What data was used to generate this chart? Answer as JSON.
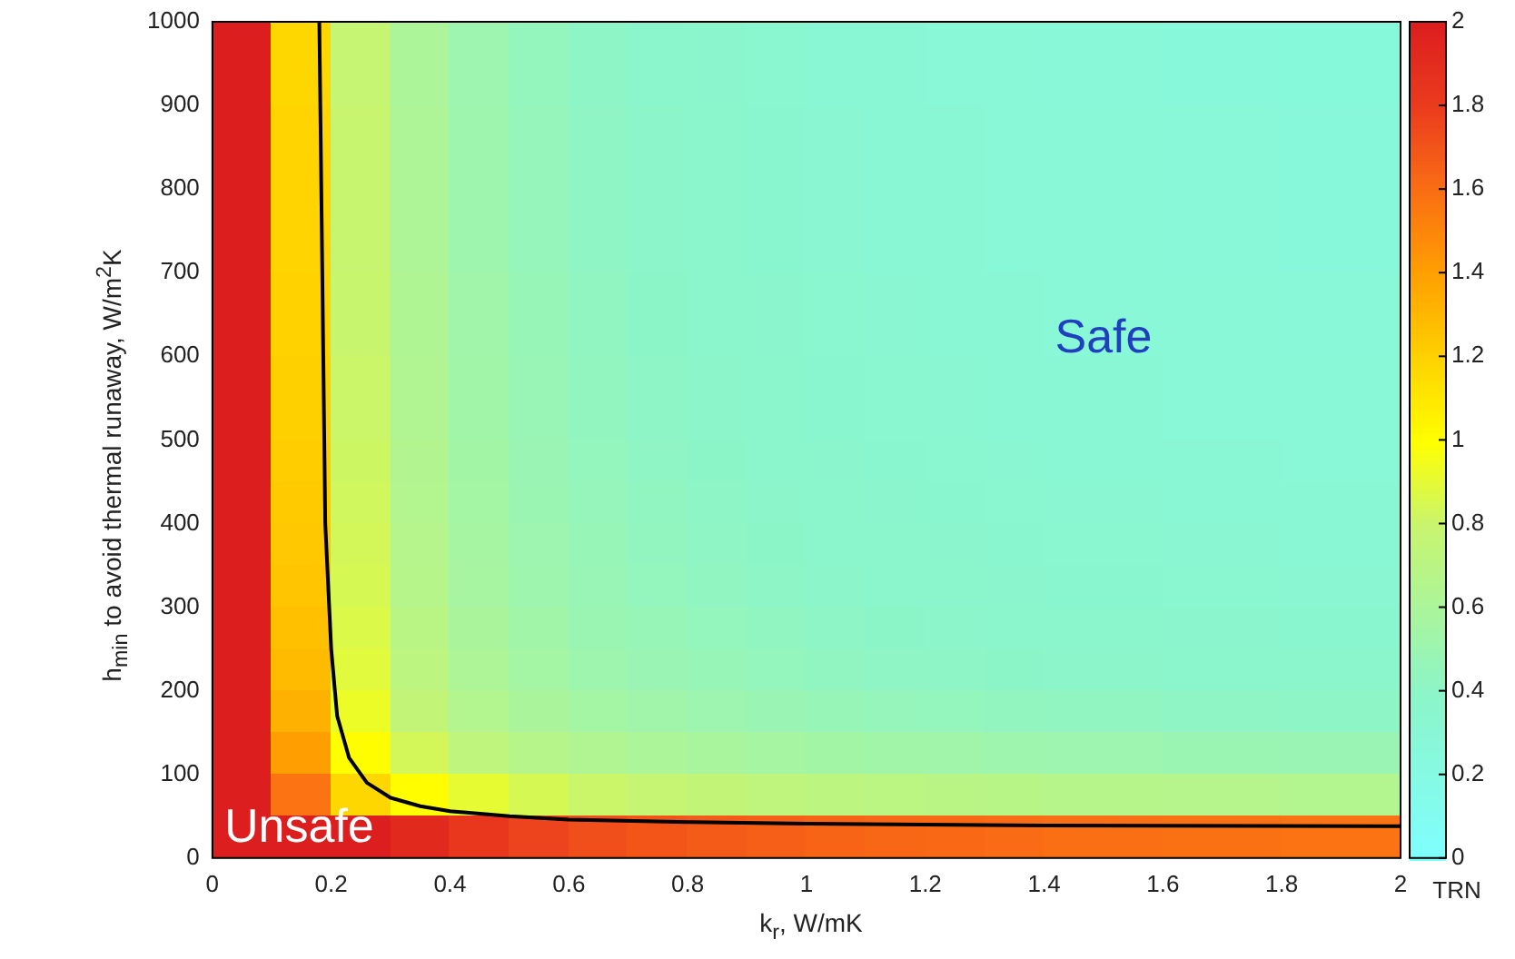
{
  "chart_data": {
    "type": "heatmap",
    "xlabel": "k$_{r}$, W/mK",
    "ylabel": "h$_{min}$ to avoid thermal runaway, W/m$^{2}$K",
    "clabel": "TRN",
    "xlim": [
      0,
      2
    ],
    "xticks": [
      0,
      0.2,
      0.4,
      0.6,
      0.8,
      1,
      1.2,
      1.4,
      1.6,
      1.8,
      2
    ],
    "ylim": [
      0,
      1000
    ],
    "yticks": [
      0,
      100,
      200,
      300,
      400,
      500,
      600,
      700,
      800,
      900,
      1000
    ],
    "clim": [
      0,
      2
    ],
    "cticks": [
      0,
      0.2,
      0.4,
      0.6,
      0.8,
      1,
      1.2,
      1.4,
      1.6,
      1.8,
      2
    ],
    "cells": [
      [
        2,
        1.18,
        0.78,
        0.61,
        0.51,
        0.45,
        0.41,
        0.38,
        0.36,
        0.34,
        0.32,
        0.31,
        0.3,
        0.29,
        0.28,
        0.28,
        0.27,
        0.27,
        0.26,
        0.26
      ],
      [
        2,
        1.18,
        0.78,
        0.61,
        0.51,
        0.45,
        0.41,
        0.38,
        0.36,
        0.34,
        0.32,
        0.31,
        0.3,
        0.29,
        0.28,
        0.28,
        0.27,
        0.27,
        0.26,
        0.26
      ],
      [
        2,
        1.19,
        0.79,
        0.62,
        0.52,
        0.46,
        0.42,
        0.39,
        0.37,
        0.35,
        0.33,
        0.32,
        0.31,
        0.3,
        0.29,
        0.29,
        0.28,
        0.28,
        0.27,
        0.27
      ],
      [
        2,
        1.19,
        0.79,
        0.62,
        0.52,
        0.46,
        0.42,
        0.39,
        0.37,
        0.35,
        0.33,
        0.32,
        0.31,
        0.3,
        0.29,
        0.29,
        0.28,
        0.28,
        0.27,
        0.27
      ],
      [
        2,
        1.19,
        0.79,
        0.62,
        0.52,
        0.46,
        0.42,
        0.39,
        0.37,
        0.35,
        0.33,
        0.32,
        0.31,
        0.3,
        0.29,
        0.29,
        0.28,
        0.28,
        0.27,
        0.27
      ],
      [
        2,
        1.19,
        0.79,
        0.62,
        0.52,
        0.46,
        0.42,
        0.39,
        0.37,
        0.35,
        0.33,
        0.32,
        0.31,
        0.3,
        0.29,
        0.29,
        0.28,
        0.28,
        0.27,
        0.27
      ],
      [
        2,
        1.2,
        0.8,
        0.63,
        0.53,
        0.47,
        0.43,
        0.4,
        0.38,
        0.36,
        0.34,
        0.33,
        0.32,
        0.31,
        0.3,
        0.3,
        0.29,
        0.29,
        0.28,
        0.28
      ],
      [
        2,
        1.2,
        0.8,
        0.63,
        0.53,
        0.47,
        0.43,
        0.4,
        0.38,
        0.36,
        0.34,
        0.33,
        0.32,
        0.31,
        0.3,
        0.3,
        0.29,
        0.29,
        0.28,
        0.28
      ],
      [
        2,
        1.21,
        0.81,
        0.64,
        0.54,
        0.48,
        0.44,
        0.41,
        0.39,
        0.37,
        0.35,
        0.34,
        0.33,
        0.32,
        0.31,
        0.31,
        0.3,
        0.3,
        0.29,
        0.29
      ],
      [
        2,
        1.21,
        0.81,
        0.64,
        0.54,
        0.48,
        0.44,
        0.41,
        0.39,
        0.37,
        0.35,
        0.34,
        0.33,
        0.32,
        0.31,
        0.31,
        0.3,
        0.3,
        0.29,
        0.29
      ],
      [
        2,
        1.22,
        0.82,
        0.65,
        0.55,
        0.49,
        0.45,
        0.42,
        0.4,
        0.38,
        0.36,
        0.35,
        0.34,
        0.33,
        0.32,
        0.32,
        0.31,
        0.31,
        0.3,
        0.3
      ],
      [
        2,
        1.23,
        0.83,
        0.66,
        0.56,
        0.5,
        0.46,
        0.43,
        0.41,
        0.39,
        0.37,
        0.36,
        0.35,
        0.34,
        0.33,
        0.33,
        0.32,
        0.32,
        0.31,
        0.31
      ],
      [
        2,
        1.24,
        0.84,
        0.67,
        0.57,
        0.51,
        0.47,
        0.44,
        0.42,
        0.4,
        0.38,
        0.37,
        0.36,
        0.35,
        0.34,
        0.34,
        0.33,
        0.33,
        0.32,
        0.32
      ],
      [
        2,
        1.25,
        0.85,
        0.68,
        0.58,
        0.52,
        0.48,
        0.45,
        0.43,
        0.41,
        0.39,
        0.38,
        0.37,
        0.36,
        0.35,
        0.35,
        0.34,
        0.34,
        0.33,
        0.33
      ],
      [
        2,
        1.27,
        0.87,
        0.7,
        0.6,
        0.54,
        0.5,
        0.47,
        0.45,
        0.43,
        0.41,
        0.4,
        0.39,
        0.38,
        0.37,
        0.37,
        0.36,
        0.36,
        0.35,
        0.35
      ],
      [
        2,
        1.29,
        0.89,
        0.72,
        0.62,
        0.56,
        0.52,
        0.49,
        0.47,
        0.45,
        0.43,
        0.42,
        0.41,
        0.4,
        0.39,
        0.39,
        0.38,
        0.38,
        0.37,
        0.37
      ],
      [
        2,
        1.33,
        0.93,
        0.76,
        0.66,
        0.6,
        0.56,
        0.53,
        0.51,
        0.49,
        0.47,
        0.46,
        0.45,
        0.44,
        0.43,
        0.43,
        0.42,
        0.42,
        0.41,
        0.41
      ],
      [
        2,
        1.41,
        1.01,
        0.84,
        0.74,
        0.68,
        0.64,
        0.61,
        0.59,
        0.57,
        0.55,
        0.54,
        0.53,
        0.52,
        0.51,
        0.51,
        0.5,
        0.5,
        0.49,
        0.49
      ],
      [
        2,
        1.58,
        1.18,
        1.01,
        0.91,
        0.85,
        0.81,
        0.78,
        0.76,
        0.74,
        0.72,
        0.71,
        0.7,
        0.69,
        0.68,
        0.68,
        0.67,
        0.67,
        0.66,
        0.66
      ],
      [
        2,
        2,
        2,
        1.93,
        1.83,
        1.77,
        1.73,
        1.7,
        1.68,
        1.66,
        1.64,
        1.63,
        1.62,
        1.61,
        1.6,
        1.6,
        1.59,
        1.59,
        1.58,
        1.58
      ]
    ],
    "series": [
      {
        "type": "line",
        "color": "#000000",
        "x": [
          0.18,
          0.185,
          0.19,
          0.2,
          0.21,
          0.23,
          0.26,
          0.3,
          0.35,
          0.4,
          0.5,
          0.6,
          0.8,
          1,
          1.4,
          2
        ],
        "values": [
          1000,
          700,
          400,
          250,
          170,
          120,
          90,
          72,
          62,
          56,
          50,
          46,
          43,
          41,
          39,
          38
        ]
      }
    ],
    "marker": "none",
    "annotations": [
      "Safe",
      "Unsafe"
    ]
  }
}
